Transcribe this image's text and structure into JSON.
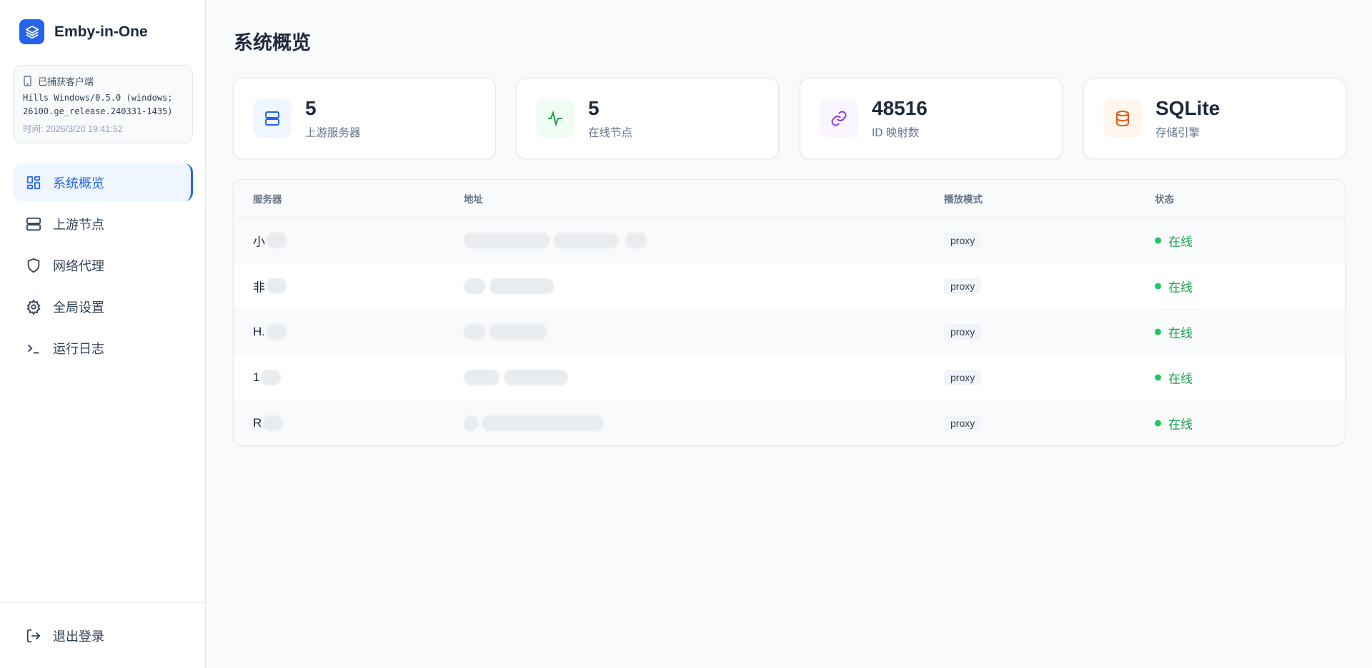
{
  "app": {
    "name": "Emby-in-One",
    "logo_icon": "layers-icon",
    "accent": "#2563eb"
  },
  "client": {
    "label": "已捕获客户端",
    "user_agent_line1": "Hills Windows/0.5.0 (windows;",
    "user_agent_line2": "26100.ge_release.240331-1435)",
    "time": "时间: 2026/3/20 19:41:52"
  },
  "nav": {
    "items": [
      {
        "label": "系统概览",
        "icon": "dashboard-icon",
        "active": true
      },
      {
        "label": "上游节点",
        "icon": "server-icon"
      },
      {
        "label": "网络代理",
        "icon": "shield-icon"
      },
      {
        "label": "全局设置",
        "icon": "gear-icon"
      },
      {
        "label": "运行日志",
        "icon": "terminal-icon"
      }
    ],
    "logout": "退出登录"
  },
  "page": {
    "title": "系统概览"
  },
  "stats": [
    {
      "value": "5",
      "label": "上游服务器",
      "icon": "server-icon",
      "color": "#2563eb"
    },
    {
      "value": "5",
      "label": "在线节点",
      "icon": "activity-icon",
      "color": "#16a34a"
    },
    {
      "value": "48516",
      "label": "ID 映射数",
      "icon": "link-icon",
      "color": "#9333ea"
    },
    {
      "value": "SQLite",
      "label": "存储引擎",
      "icon": "database-icon",
      "color": "#ea580c"
    }
  ],
  "table": {
    "headers": [
      "服务器",
      "地址",
      "播放模式",
      "状态"
    ],
    "rows": [
      {
        "server": "小",
        "mode": "proxy",
        "status": "在线"
      },
      {
        "server": "非",
        "mode": "proxy",
        "status": "在线"
      },
      {
        "server": "H.",
        "mode": "proxy",
        "status": "在线"
      },
      {
        "server": "1",
        "mode": "proxy",
        "status": "在线"
      },
      {
        "server": "R",
        "mode": "proxy",
        "status": "在线"
      }
    ]
  }
}
